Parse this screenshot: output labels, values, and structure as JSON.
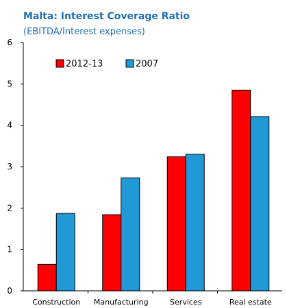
{
  "chart_data": {
    "type": "bar",
    "title": "Malta: Interest Coverage Ratio",
    "subtitle": "(EBITDA/Interest  expenses)",
    "categories": [
      "Construction",
      "Manufacturing",
      "Services",
      "Real estate"
    ],
    "series": [
      {
        "name": "2012-13",
        "values": [
          0.64,
          1.84,
          3.24,
          4.85
        ],
        "color": "#ff0000"
      },
      {
        "name": "2007",
        "values": [
          1.87,
          2.73,
          3.3,
          4.21
        ],
        "color": "#1f9ad6"
      }
    ],
    "ylim": [
      0,
      6
    ],
    "yticks": [
      "0",
      "1",
      "2",
      "3",
      "4",
      "5",
      "6"
    ],
    "legend_position": "top-left",
    "grid": false
  }
}
